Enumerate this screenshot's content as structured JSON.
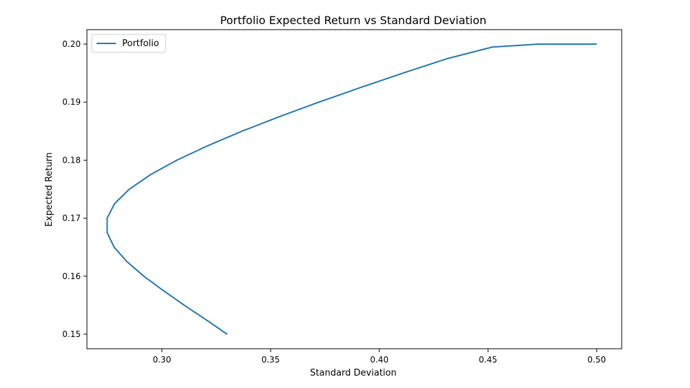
{
  "chart_data": {
    "type": "line",
    "title": "Portfolio Expected Return vs Standard Deviation",
    "xlabel": "Standard Deviation",
    "ylabel": "Expected Return",
    "xlim": [
      0.2655,
      0.5115
    ],
    "ylim": [
      0.1475,
      0.2025
    ],
    "x_ticks": [
      "0.30",
      "0.35",
      "0.40",
      "0.45",
      "0.50"
    ],
    "y_ticks": [
      "0.15",
      "0.16",
      "0.17",
      "0.18",
      "0.19",
      "0.20"
    ],
    "grid": false,
    "legend_position": "upper-left",
    "series": [
      {
        "name": "Portfolio",
        "color": "#1f77b4",
        "x": [
          0.33,
          0.3203,
          0.3103,
          0.3007,
          0.2917,
          0.2839,
          0.278,
          0.2748,
          0.2748,
          0.2782,
          0.285,
          0.2947,
          0.3069,
          0.3211,
          0.3369,
          0.354,
          0.3722,
          0.3912,
          0.4109,
          0.4312,
          0.452,
          0.4732,
          0.4947,
          0.5
        ],
        "y": [
          0.15,
          0.1525,
          0.155,
          0.1575,
          0.16,
          0.1625,
          0.165,
          0.1675,
          0.17,
          0.1725,
          0.175,
          0.1775,
          0.18,
          0.1825,
          0.185,
          0.1875,
          0.19,
          0.1925,
          0.195,
          0.1975,
          0.1995,
          0.2,
          0.2,
          0.2
        ]
      }
    ]
  }
}
